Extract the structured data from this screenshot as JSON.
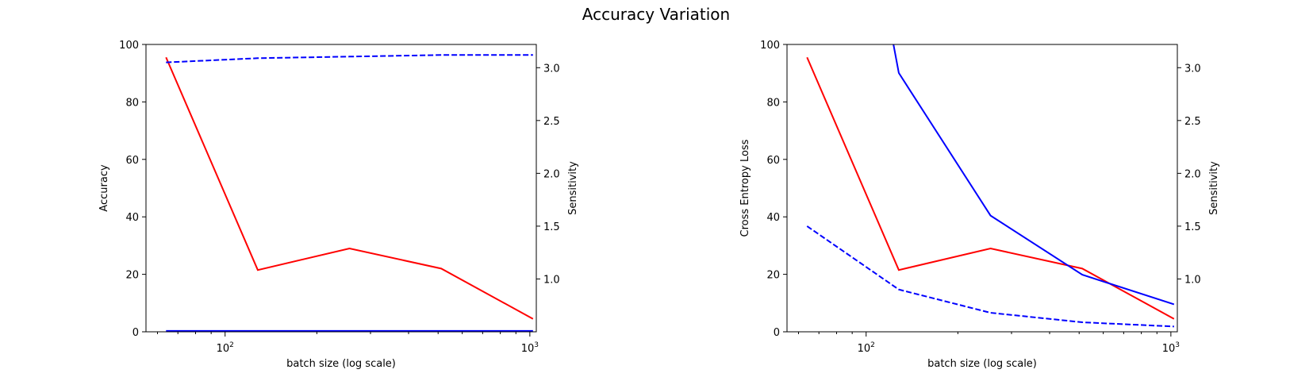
{
  "figure": {
    "title": "Accuracy Variation"
  },
  "chart_data": [
    {
      "type": "line",
      "title": "",
      "xlabel": "batch size (log scale)",
      "ylabel": "Accuracy",
      "ylabel_right": "Sensitivity",
      "xscale": "log",
      "xlim": [
        55,
        1050
      ],
      "ylim": [
        0,
        100
      ],
      "ylim_right": [
        0.5,
        3.22
      ],
      "x_ticks": [
        {
          "value": 100,
          "label": "10",
          "exp": "2"
        },
        {
          "value": 1000,
          "label": "10",
          "exp": "3"
        }
      ],
      "y_ticks": [
        0,
        20,
        40,
        60,
        80,
        100
      ],
      "y_ticks_right": [
        1.0,
        1.5,
        2.0,
        2.5,
        3.0
      ],
      "grid": false,
      "x": [
        64,
        128,
        256,
        512,
        1024
      ],
      "series": [
        {
          "axis": "left",
          "color": "#ff0000",
          "style": "solid",
          "values": [
            95.5,
            21.5,
            29.0,
            22.0,
            4.5
          ]
        },
        {
          "axis": "left",
          "color": "#0000ff",
          "style": "solid",
          "values": [
            0.3,
            0.3,
            0.3,
            0.3,
            0.3
          ]
        },
        {
          "axis": "right",
          "color": "#0000ff",
          "style": "dashed",
          "values": [
            3.05,
            3.09,
            3.105,
            3.12,
            3.12
          ]
        }
      ]
    },
    {
      "type": "line",
      "title": "",
      "xlabel": "batch size (log scale)",
      "ylabel": "Cross Entropy Loss",
      "ylabel_right": "Sensitivity",
      "xscale": "log",
      "xlim": [
        55,
        1050
      ],
      "ylim": [
        0,
        100
      ],
      "ylim_right": [
        0.5,
        3.22
      ],
      "x_ticks": [
        {
          "value": 100,
          "label": "10",
          "exp": "2"
        },
        {
          "value": 1000,
          "label": "10",
          "exp": "3"
        }
      ],
      "y_ticks": [
        0,
        20,
        40,
        60,
        80,
        100
      ],
      "y_ticks_right": [
        1.0,
        1.5,
        2.0,
        2.5,
        3.0
      ],
      "grid": false,
      "x": [
        64,
        128,
        256,
        512,
        1024
      ],
      "series": [
        {
          "axis": "left",
          "color": "#ff0000",
          "style": "solid",
          "values": [
            95.5,
            21.5,
            29.0,
            22.0,
            4.5
          ]
        },
        {
          "axis": "right",
          "color": "#0000ff",
          "style": "solid",
          "x": [
            100,
            128,
            256,
            512,
            1024
          ],
          "values": [
            4.6,
            2.95,
            1.6,
            1.04,
            0.76
          ]
        },
        {
          "axis": "right",
          "color": "#0000ff",
          "style": "dashed",
          "values": [
            1.5,
            0.9,
            0.68,
            0.59,
            0.55
          ]
        }
      ]
    }
  ]
}
